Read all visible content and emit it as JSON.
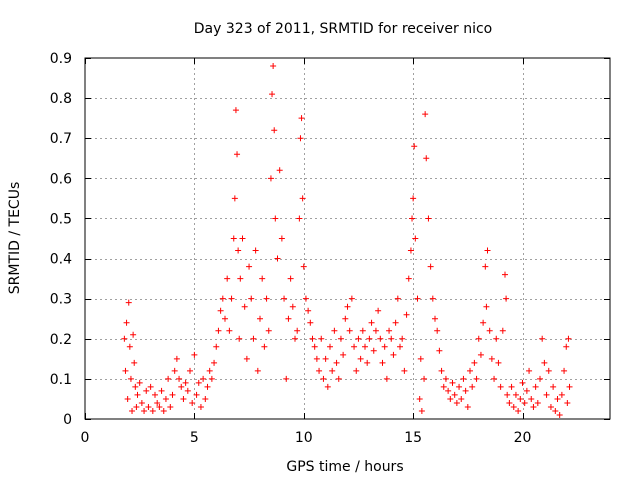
{
  "chart_data": {
    "type": "scatter",
    "title": "Day 323 of 2011, SRMTID for receiver nico",
    "xlabel": "GPS time / hours",
    "ylabel": "SRMTID / TECUs",
    "xlim": [
      0,
      24
    ],
    "ylim": [
      0,
      0.9
    ],
    "x_ticks": [
      0,
      5,
      10,
      15,
      20
    ],
    "x_tick_labels": [
      "0",
      "5",
      "10",
      "15",
      "20"
    ],
    "y_ticks": [
      0,
      0.1,
      0.2,
      0.3,
      0.4,
      0.5,
      0.6,
      0.7,
      0.8,
      0.9
    ],
    "y_tick_labels": [
      "0",
      "0.1",
      "0.2",
      "0.3",
      "0.4",
      "0.5",
      "0.6",
      "0.7",
      "0.8",
      "0.9"
    ],
    "grid": true,
    "marker": "+",
    "color": "#ff0000",
    "series": [
      {
        "name": "SRMTID",
        "points": [
          [
            1.8,
            0.2
          ],
          [
            1.85,
            0.12
          ],
          [
            1.9,
            0.24
          ],
          [
            1.95,
            0.05
          ],
          [
            2.0,
            0.29
          ],
          [
            2.05,
            0.18
          ],
          [
            2.1,
            0.1
          ],
          [
            2.15,
            0.02
          ],
          [
            2.2,
            0.21
          ],
          [
            2.25,
            0.14
          ],
          [
            2.3,
            0.08
          ],
          [
            2.35,
            0.03
          ],
          [
            2.4,
            0.06
          ],
          [
            2.5,
            0.09
          ],
          [
            2.6,
            0.04
          ],
          [
            2.7,
            0.02
          ],
          [
            2.8,
            0.07
          ],
          [
            2.9,
            0.03
          ],
          [
            3.0,
            0.08
          ],
          [
            3.1,
            0.02
          ],
          [
            3.2,
            0.06
          ],
          [
            3.3,
            0.04
          ],
          [
            3.4,
            0.03
          ],
          [
            3.5,
            0.07
          ],
          [
            3.6,
            0.02
          ],
          [
            3.7,
            0.05
          ],
          [
            3.8,
            0.1
          ],
          [
            3.9,
            0.03
          ],
          [
            4.0,
            0.06
          ],
          [
            4.1,
            0.12
          ],
          [
            4.2,
            0.15
          ],
          [
            4.3,
            0.1
          ],
          [
            4.4,
            0.08
          ],
          [
            4.5,
            0.05
          ],
          [
            4.6,
            0.09
          ],
          [
            4.7,
            0.07
          ],
          [
            4.8,
            0.12
          ],
          [
            4.9,
            0.04
          ],
          [
            5.0,
            0.16
          ],
          [
            5.1,
            0.06
          ],
          [
            5.2,
            0.09
          ],
          [
            5.3,
            0.03
          ],
          [
            5.4,
            0.1
          ],
          [
            5.5,
            0.05
          ],
          [
            5.6,
            0.08
          ],
          [
            5.7,
            0.12
          ],
          [
            5.8,
            0.1
          ],
          [
            5.9,
            0.14
          ],
          [
            6.0,
            0.18
          ],
          [
            6.1,
            0.22
          ],
          [
            6.2,
            0.27
          ],
          [
            6.3,
            0.3
          ],
          [
            6.4,
            0.25
          ],
          [
            6.5,
            0.35
          ],
          [
            6.6,
            0.22
          ],
          [
            6.7,
            0.3
          ],
          [
            6.8,
            0.45
          ],
          [
            6.85,
            0.55
          ],
          [
            6.9,
            0.77
          ],
          [
            6.95,
            0.66
          ],
          [
            7.0,
            0.42
          ],
          [
            7.05,
            0.2
          ],
          [
            7.1,
            0.35
          ],
          [
            7.2,
            0.45
          ],
          [
            7.3,
            0.28
          ],
          [
            7.4,
            0.15
          ],
          [
            7.5,
            0.38
          ],
          [
            7.6,
            0.3
          ],
          [
            7.7,
            0.2
          ],
          [
            7.8,
            0.42
          ],
          [
            7.9,
            0.12
          ],
          [
            8.0,
            0.25
          ],
          [
            8.1,
            0.35
          ],
          [
            8.2,
            0.18
          ],
          [
            8.3,
            0.3
          ],
          [
            8.4,
            0.22
          ],
          [
            8.5,
            0.6
          ],
          [
            8.55,
            0.81
          ],
          [
            8.6,
            0.88
          ],
          [
            8.65,
            0.72
          ],
          [
            8.7,
            0.5
          ],
          [
            8.8,
            0.4
          ],
          [
            8.9,
            0.62
          ],
          [
            9.0,
            0.45
          ],
          [
            9.1,
            0.3
          ],
          [
            9.2,
            0.1
          ],
          [
            9.3,
            0.25
          ],
          [
            9.4,
            0.35
          ],
          [
            9.5,
            0.28
          ],
          [
            9.6,
            0.2
          ],
          [
            9.7,
            0.22
          ],
          [
            9.8,
            0.5
          ],
          [
            9.85,
            0.7
          ],
          [
            9.9,
            0.75
          ],
          [
            9.95,
            0.55
          ],
          [
            10.0,
            0.38
          ],
          [
            10.1,
            0.3
          ],
          [
            10.2,
            0.27
          ],
          [
            10.3,
            0.24
          ],
          [
            10.4,
            0.2
          ],
          [
            10.5,
            0.18
          ],
          [
            10.6,
            0.15
          ],
          [
            10.7,
            0.12
          ],
          [
            10.8,
            0.2
          ],
          [
            10.9,
            0.1
          ],
          [
            11.0,
            0.15
          ],
          [
            11.1,
            0.08
          ],
          [
            11.2,
            0.18
          ],
          [
            11.3,
            0.12
          ],
          [
            11.4,
            0.22
          ],
          [
            11.5,
            0.14
          ],
          [
            11.6,
            0.1
          ],
          [
            11.7,
            0.2
          ],
          [
            11.8,
            0.16
          ],
          [
            11.9,
            0.25
          ],
          [
            12.0,
            0.28
          ],
          [
            12.1,
            0.22
          ],
          [
            12.2,
            0.3
          ],
          [
            12.3,
            0.18
          ],
          [
            12.4,
            0.12
          ],
          [
            12.5,
            0.2
          ],
          [
            12.6,
            0.15
          ],
          [
            12.7,
            0.22
          ],
          [
            12.8,
            0.18
          ],
          [
            12.9,
            0.14
          ],
          [
            13.0,
            0.2
          ],
          [
            13.1,
            0.24
          ],
          [
            13.2,
            0.17
          ],
          [
            13.3,
            0.22
          ],
          [
            13.4,
            0.27
          ],
          [
            13.5,
            0.2
          ],
          [
            13.6,
            0.14
          ],
          [
            13.7,
            0.18
          ],
          [
            13.8,
            0.1
          ],
          [
            13.9,
            0.22
          ],
          [
            14.0,
            0.2
          ],
          [
            14.1,
            0.16
          ],
          [
            14.2,
            0.24
          ],
          [
            14.3,
            0.3
          ],
          [
            14.4,
            0.18
          ],
          [
            14.5,
            0.2
          ],
          [
            14.6,
            0.12
          ],
          [
            14.7,
            0.26
          ],
          [
            14.8,
            0.35
          ],
          [
            14.9,
            0.42
          ],
          [
            14.95,
            0.5
          ],
          [
            15.0,
            0.55
          ],
          [
            15.05,
            0.68
          ],
          [
            15.1,
            0.45
          ],
          [
            15.2,
            0.3
          ],
          [
            15.3,
            0.05
          ],
          [
            15.35,
            0.15
          ],
          [
            15.4,
            0.02
          ],
          [
            15.5,
            0.1
          ],
          [
            15.55,
            0.76
          ],
          [
            15.6,
            0.65
          ],
          [
            15.7,
            0.5
          ],
          [
            15.8,
            0.38
          ],
          [
            15.9,
            0.3
          ],
          [
            16.0,
            0.25
          ],
          [
            16.1,
            0.22
          ],
          [
            16.2,
            0.17
          ],
          [
            16.3,
            0.12
          ],
          [
            16.4,
            0.08
          ],
          [
            16.5,
            0.1
          ],
          [
            16.6,
            0.07
          ],
          [
            16.7,
            0.05
          ],
          [
            16.8,
            0.09
          ],
          [
            16.9,
            0.06
          ],
          [
            17.0,
            0.04
          ],
          [
            17.1,
            0.08
          ],
          [
            17.2,
            0.05
          ],
          [
            17.3,
            0.1
          ],
          [
            17.4,
            0.07
          ],
          [
            17.5,
            0.03
          ],
          [
            17.6,
            0.12
          ],
          [
            17.7,
            0.08
          ],
          [
            17.8,
            0.14
          ],
          [
            17.9,
            0.1
          ],
          [
            18.0,
            0.2
          ],
          [
            18.1,
            0.16
          ],
          [
            18.2,
            0.24
          ],
          [
            18.3,
            0.38
          ],
          [
            18.35,
            0.28
          ],
          [
            18.4,
            0.42
          ],
          [
            18.5,
            0.22
          ],
          [
            18.6,
            0.15
          ],
          [
            18.7,
            0.1
          ],
          [
            18.8,
            0.2
          ],
          [
            18.9,
            0.14
          ],
          [
            19.0,
            0.08
          ],
          [
            19.1,
            0.22
          ],
          [
            19.2,
            0.36
          ],
          [
            19.25,
            0.3
          ],
          [
            19.3,
            0.06
          ],
          [
            19.4,
            0.04
          ],
          [
            19.5,
            0.08
          ],
          [
            19.6,
            0.03
          ],
          [
            19.7,
            0.06
          ],
          [
            19.8,
            0.02
          ],
          [
            19.9,
            0.05
          ],
          [
            20.0,
            0.09
          ],
          [
            20.1,
            0.04
          ],
          [
            20.2,
            0.07
          ],
          [
            20.3,
            0.12
          ],
          [
            20.4,
            0.05
          ],
          [
            20.5,
            0.03
          ],
          [
            20.6,
            0.08
          ],
          [
            20.7,
            0.04
          ],
          [
            20.8,
            0.1
          ],
          [
            20.9,
            0.2
          ],
          [
            21.0,
            0.14
          ],
          [
            21.1,
            0.06
          ],
          [
            21.2,
            0.12
          ],
          [
            21.3,
            0.03
          ],
          [
            21.4,
            0.08
          ],
          [
            21.5,
            0.02
          ],
          [
            21.6,
            0.05
          ],
          [
            21.7,
            0.01
          ],
          [
            21.8,
            0.06
          ],
          [
            21.9,
            0.12
          ],
          [
            22.0,
            0.18
          ],
          [
            22.05,
            0.04
          ],
          [
            22.1,
            0.2
          ],
          [
            22.15,
            0.08
          ]
        ]
      }
    ]
  }
}
